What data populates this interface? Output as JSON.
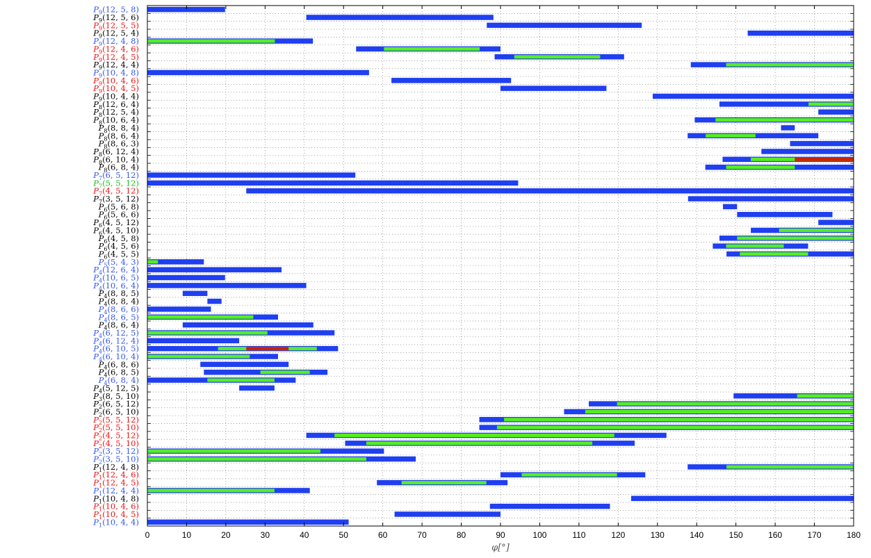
{
  "chart_data": {
    "type": "bar",
    "subtype": "horizontal-range",
    "xlabel": "φ[°]",
    "xlim": [
      0,
      180
    ],
    "xticks": [
      0,
      10,
      20,
      30,
      40,
      50,
      60,
      70,
      80,
      90,
      100,
      110,
      120,
      130,
      140,
      150,
      160,
      170,
      180
    ],
    "grid": true,
    "colors": {
      "blue_range": "#1f3ff0",
      "green_range": "#55ee22",
      "red_range": "#cc2200",
      "label_black": "#000000",
      "label_blue": "#3355ee",
      "label_red": "#ee1111",
      "label_green": "#22bb22"
    },
    "rows": [
      {
        "label": "P9(12,5,8)",
        "label_color": "blue",
        "ranges": [
          {
            "start": 0,
            "end": 19.8,
            "color": "blue"
          }
        ]
      },
      {
        "label": "P9(12,5,6)",
        "label_color": "black",
        "ranges": [
          {
            "start": 40.5,
            "end": 88.2,
            "color": "blue"
          }
        ]
      },
      {
        "label": "P9(12,5,5)",
        "label_color": "red",
        "ranges": [
          {
            "start": 86.5,
            "end": 126,
            "color": "blue"
          }
        ]
      },
      {
        "label": "P9(12,5,4)",
        "label_color": "black",
        "ranges": [
          {
            "start": 153,
            "end": 180,
            "color": "blue"
          }
        ]
      },
      {
        "label": "P9(12,4,8)",
        "label_color": "blue",
        "ranges": [
          {
            "start": 0,
            "end": 42.2,
            "color": "blue"
          },
          {
            "start": 0,
            "end": 32.5,
            "color": "green"
          }
        ]
      },
      {
        "label": "P9(12,4,6)",
        "label_color": "red",
        "ranges": [
          {
            "start": 53.2,
            "end": 90,
            "color": "blue"
          },
          {
            "start": 60.3,
            "end": 84.7,
            "color": "green"
          }
        ]
      },
      {
        "label": "P9(12,4,5)",
        "label_color": "red",
        "ranges": [
          {
            "start": 88.5,
            "end": 121.5,
            "color": "blue"
          },
          {
            "start": 93.5,
            "end": 115.4,
            "color": "green"
          }
        ]
      },
      {
        "label": "P9(12,4,4)",
        "label_color": "black",
        "ranges": [
          {
            "start": 138.5,
            "end": 180,
            "color": "blue"
          },
          {
            "start": 147.5,
            "end": 180,
            "color": "green"
          }
        ]
      },
      {
        "label": "P9(10,4,8)",
        "label_color": "blue",
        "ranges": [
          {
            "start": 0,
            "end": 56.5,
            "color": "blue"
          }
        ]
      },
      {
        "label": "P9(10,4,6)",
        "label_color": "red",
        "ranges": [
          {
            "start": 62.2,
            "end": 92.7,
            "color": "blue"
          }
        ]
      },
      {
        "label": "P9(10,4,5)",
        "label_color": "red",
        "ranges": [
          {
            "start": 90,
            "end": 117,
            "color": "blue"
          }
        ]
      },
      {
        "label": "P9(10,4,4)",
        "label_color": "black",
        "ranges": [
          {
            "start": 128.8,
            "end": 180,
            "color": "blue"
          }
        ]
      },
      {
        "label": "P8(12,6,4)",
        "label_color": "black",
        "ranges": [
          {
            "start": 145.8,
            "end": 180,
            "color": "blue"
          },
          {
            "start": 168.5,
            "end": 180,
            "color": "green"
          }
        ]
      },
      {
        "label": "P8(12,5,4)",
        "label_color": "black",
        "ranges": [
          {
            "start": 171,
            "end": 180,
            "color": "blue"
          }
        ]
      },
      {
        "label": "P8(10,6,4)",
        "label_color": "black",
        "ranges": [
          {
            "start": 139.5,
            "end": 180,
            "color": "blue"
          },
          {
            "start": 144.8,
            "end": 180,
            "color": "green"
          }
        ]
      },
      {
        "label": "P8(8,8,4)",
        "label_color": "black",
        "ranges": [
          {
            "start": 161.5,
            "end": 165,
            "color": "blue"
          }
        ]
      },
      {
        "label": "P8(8,6,4)",
        "label_color": "black",
        "ranges": [
          {
            "start": 137.7,
            "end": 171,
            "color": "blue"
          },
          {
            "start": 142.3,
            "end": 155,
            "color": "green"
          }
        ]
      },
      {
        "label": "P8(8,6,3)",
        "label_color": "black",
        "ranges": [
          {
            "start": 163.8,
            "end": 180,
            "color": "blue"
          }
        ]
      },
      {
        "label": "P8(6,12,4)",
        "label_color": "black",
        "ranges": [
          {
            "start": 156.5,
            "end": 180,
            "color": "blue"
          }
        ]
      },
      {
        "label": "P8(6,10,4)",
        "label_color": "black",
        "ranges": [
          {
            "start": 146.6,
            "end": 180,
            "color": "blue"
          },
          {
            "start": 153.8,
            "end": 180,
            "color": "green"
          },
          {
            "start": 165,
            "end": 180,
            "color": "red"
          }
        ]
      },
      {
        "label": "P8(6,8,4)",
        "label_color": "black",
        "ranges": [
          {
            "start": 142.2,
            "end": 180,
            "color": "blue"
          },
          {
            "start": 147.5,
            "end": 165,
            "color": "green"
          }
        ]
      },
      {
        "label": "P7(6,5,12)",
        "label_color": "blue",
        "ranges": [
          {
            "start": 0,
            "end": 53,
            "color": "blue"
          }
        ]
      },
      {
        "label": "P7(5,5,12)",
        "label_color": "green",
        "ranges": [
          {
            "start": 0,
            "end": 94.5,
            "color": "blue"
          }
        ]
      },
      {
        "label": "P7(4,5,12)",
        "label_color": "red",
        "ranges": [
          {
            "start": 25.2,
            "end": 180,
            "color": "blue"
          }
        ]
      },
      {
        "label": "P7(3,5,12)",
        "label_color": "black",
        "ranges": [
          {
            "start": 137.8,
            "end": 180,
            "color": "blue"
          }
        ]
      },
      {
        "label": "P6(5,6,8)",
        "label_color": "black",
        "ranges": [
          {
            "start": 146.7,
            "end": 150.3,
            "color": "blue"
          }
        ]
      },
      {
        "label": "P6(5,6,6)",
        "label_color": "black",
        "ranges": [
          {
            "start": 150.3,
            "end": 174.6,
            "color": "blue"
          }
        ]
      },
      {
        "label": "P6(4,5,12)",
        "label_color": "black",
        "ranges": [
          {
            "start": 171,
            "end": 180,
            "color": "blue"
          }
        ]
      },
      {
        "label": "P6(4,5,10)",
        "label_color": "black",
        "ranges": [
          {
            "start": 153.8,
            "end": 180,
            "color": "blue"
          },
          {
            "start": 161,
            "end": 180,
            "color": "green"
          }
        ]
      },
      {
        "label": "P6(4,5,8)",
        "label_color": "black",
        "ranges": [
          {
            "start": 145.8,
            "end": 180,
            "color": "blue"
          },
          {
            "start": 150.3,
            "end": 180,
            "color": "green"
          }
        ]
      },
      {
        "label": "P6(4,5,6)",
        "label_color": "black",
        "ranges": [
          {
            "start": 144.1,
            "end": 168.4,
            "color": "blue"
          },
          {
            "start": 147.5,
            "end": 162.2,
            "color": "green"
          }
        ]
      },
      {
        "label": "P6(4,5,5)",
        "label_color": "black",
        "ranges": [
          {
            "start": 147.6,
            "end": 180,
            "color": "blue"
          },
          {
            "start": 151,
            "end": 168.4,
            "color": "green"
          }
        ]
      },
      {
        "label": "P5(5,4,3)",
        "label_color": "blue",
        "ranges": [
          {
            "start": 0,
            "end": 14.4,
            "color": "blue"
          },
          {
            "start": 0,
            "end": 2.7,
            "color": "green"
          }
        ]
      },
      {
        "label": "P4(12,6,4)",
        "label_color": "blue",
        "ranges": [
          {
            "start": 0,
            "end": 34.2,
            "color": "blue"
          }
        ]
      },
      {
        "label": "P4(10,6,5)",
        "label_color": "blue",
        "ranges": [
          {
            "start": 0,
            "end": 19.8,
            "color": "blue"
          }
        ]
      },
      {
        "label": "P4(10,6,4)",
        "label_color": "blue",
        "ranges": [
          {
            "start": 0,
            "end": 40.5,
            "color": "blue"
          }
        ]
      },
      {
        "label": "P4(8,8,5)",
        "label_color": "black",
        "ranges": [
          {
            "start": 9,
            "end": 15.3,
            "color": "blue"
          }
        ]
      },
      {
        "label": "P4(8,8,4)",
        "label_color": "black",
        "ranges": [
          {
            "start": 15.3,
            "end": 18.9,
            "color": "blue"
          }
        ]
      },
      {
        "label": "P4(8,6,6)",
        "label_color": "blue",
        "ranges": [
          {
            "start": 0,
            "end": 16.2,
            "color": "blue"
          }
        ]
      },
      {
        "label": "P4(8,6,5)",
        "label_color": "blue",
        "ranges": [
          {
            "start": 0,
            "end": 33.3,
            "color": "blue"
          },
          {
            "start": 0,
            "end": 27,
            "color": "green"
          }
        ]
      },
      {
        "label": "P4(8,6,4)",
        "label_color": "black",
        "ranges": [
          {
            "start": 9,
            "end": 42.3,
            "color": "blue"
          }
        ]
      },
      {
        "label": "P4(6,12,5)",
        "label_color": "blue",
        "ranges": [
          {
            "start": 0,
            "end": 47.7,
            "color": "blue"
          },
          {
            "start": 0,
            "end": 30.6,
            "color": "green"
          }
        ]
      },
      {
        "label": "P4(6,12,4)",
        "label_color": "blue",
        "ranges": [
          {
            "start": 0,
            "end": 23.4,
            "color": "blue"
          }
        ]
      },
      {
        "label": "P4(6,10,5)",
        "label_color": "blue",
        "ranges": [
          {
            "start": 0,
            "end": 48.6,
            "color": "blue"
          },
          {
            "start": 18,
            "end": 43.2,
            "color": "green"
          },
          {
            "start": 25.2,
            "end": 36,
            "color": "red"
          }
        ]
      },
      {
        "label": "P4(6,10,4)",
        "label_color": "blue",
        "ranges": [
          {
            "start": 0,
            "end": 33.3,
            "color": "blue"
          },
          {
            "start": 0,
            "end": 26.1,
            "color": "green"
          }
        ]
      },
      {
        "label": "P4(6,8,6)",
        "label_color": "black",
        "ranges": [
          {
            "start": 13.5,
            "end": 36,
            "color": "blue"
          }
        ]
      },
      {
        "label": "P4(6,8,5)",
        "label_color": "black",
        "ranges": [
          {
            "start": 14.4,
            "end": 45.9,
            "color": "blue"
          },
          {
            "start": 28.8,
            "end": 41.4,
            "color": "green"
          }
        ]
      },
      {
        "label": "P4(6,8,4)",
        "label_color": "blue",
        "ranges": [
          {
            "start": 0,
            "end": 37.8,
            "color": "blue"
          },
          {
            "start": 15.3,
            "end": 32.4,
            "color": "green"
          }
        ]
      },
      {
        "label": "P4(5,12,5)",
        "label_color": "black",
        "ranges": [
          {
            "start": 23.4,
            "end": 32.4,
            "color": "blue"
          }
        ]
      },
      {
        "label": "P3(8,5,10)",
        "label_color": "black",
        "ranges": [
          {
            "start": 149.4,
            "end": 180,
            "color": "blue"
          },
          {
            "start": 165.6,
            "end": 180,
            "color": "green"
          }
        ]
      },
      {
        "label": "P2(6,5,12)",
        "label_color": "black",
        "ranges": [
          {
            "start": 112.5,
            "end": 180,
            "color": "blue"
          },
          {
            "start": 119.7,
            "end": 180,
            "color": "green"
          }
        ]
      },
      {
        "label": "P2(6,5,10)",
        "label_color": "black",
        "ranges": [
          {
            "start": 106.2,
            "end": 180,
            "color": "blue"
          },
          {
            "start": 111.6,
            "end": 180,
            "color": "green"
          }
        ]
      },
      {
        "label": "P2(5,5,12)",
        "label_color": "red",
        "ranges": [
          {
            "start": 84.6,
            "end": 180,
            "color": "blue"
          },
          {
            "start": 90.9,
            "end": 180,
            "color": "green"
          }
        ]
      },
      {
        "label": "P2(5,5,10)",
        "label_color": "red",
        "ranges": [
          {
            "start": 84.6,
            "end": 180,
            "color": "blue"
          },
          {
            "start": 89.1,
            "end": 180,
            "color": "green"
          }
        ]
      },
      {
        "label": "P2(4,5,12)",
        "label_color": "red",
        "ranges": [
          {
            "start": 40.5,
            "end": 132.3,
            "color": "blue"
          },
          {
            "start": 47.7,
            "end": 119,
            "color": "green"
          }
        ]
      },
      {
        "label": "P2(4,5,10)",
        "label_color": "red",
        "ranges": [
          {
            "start": 50.4,
            "end": 124.2,
            "color": "blue"
          },
          {
            "start": 55.8,
            "end": 113.4,
            "color": "green"
          }
        ]
      },
      {
        "label": "P2(3,5,12)",
        "label_color": "blue",
        "ranges": [
          {
            "start": 0,
            "end": 60.3,
            "color": "blue"
          },
          {
            "start": 0,
            "end": 44.1,
            "color": "green"
          }
        ]
      },
      {
        "label": "P2(3,5,10)",
        "label_color": "blue",
        "ranges": [
          {
            "start": 0,
            "end": 68.4,
            "color": "blue"
          },
          {
            "start": 0,
            "end": 55.8,
            "color": "green"
          }
        ]
      },
      {
        "label": "P1(12,4,8)",
        "label_color": "black",
        "ranges": [
          {
            "start": 137.7,
            "end": 180,
            "color": "blue"
          },
          {
            "start": 147.6,
            "end": 180,
            "color": "green"
          }
        ]
      },
      {
        "label": "P1(12,4,6)",
        "label_color": "red",
        "ranges": [
          {
            "start": 90,
            "end": 126.9,
            "color": "blue"
          },
          {
            "start": 95.4,
            "end": 119.7,
            "color": "green"
          }
        ]
      },
      {
        "label": "P1(12,4,5)",
        "label_color": "red",
        "ranges": [
          {
            "start": 58.5,
            "end": 91.8,
            "color": "blue"
          },
          {
            "start": 64.8,
            "end": 86.4,
            "color": "green"
          }
        ]
      },
      {
        "label": "P1(12,4,4)",
        "label_color": "blue",
        "ranges": [
          {
            "start": 0,
            "end": 41.4,
            "color": "blue"
          },
          {
            "start": 0,
            "end": 32.4,
            "color": "green"
          }
        ]
      },
      {
        "label": "P1(10,4,8)",
        "label_color": "black",
        "ranges": [
          {
            "start": 123.3,
            "end": 180,
            "color": "blue"
          }
        ]
      },
      {
        "label": "P1(10,4,6)",
        "label_color": "red",
        "ranges": [
          {
            "start": 87.3,
            "end": 117.9,
            "color": "blue"
          }
        ]
      },
      {
        "label": "P1(10,4,5)",
        "label_color": "red",
        "ranges": [
          {
            "start": 63,
            "end": 90,
            "color": "blue"
          }
        ]
      },
      {
        "label": "P1(10,4,4)",
        "label_color": "blue",
        "ranges": [
          {
            "start": 0,
            "end": 51.3,
            "color": "blue"
          }
        ]
      }
    ]
  }
}
